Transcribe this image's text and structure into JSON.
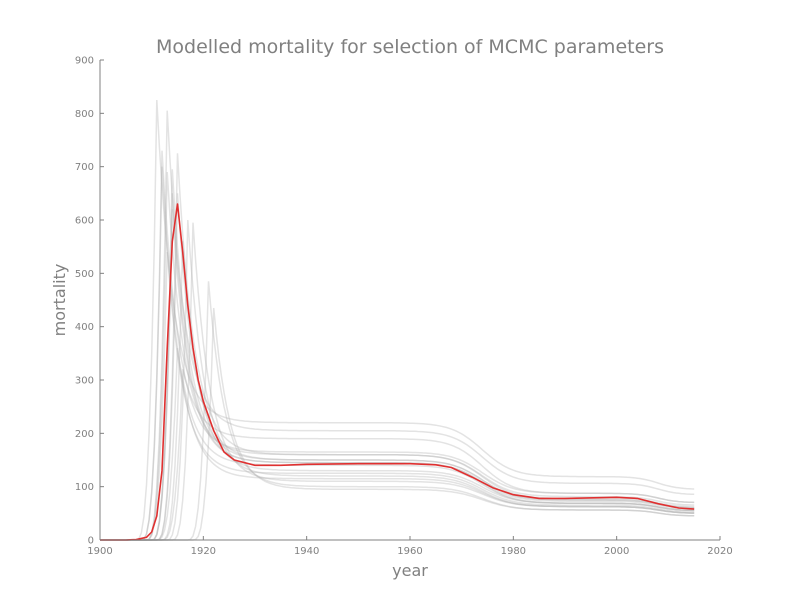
{
  "chart_data": {
    "type": "line",
    "title": "Modelled mortality for selection of MCMC parameters",
    "xlabel": "year",
    "ylabel": "mortality",
    "xlim": [
      1900,
      2020
    ],
    "ylim": [
      0,
      900
    ],
    "xticks": [
      "1900",
      "1920",
      "1940",
      "1960",
      "1980",
      "2000",
      "2020"
    ],
    "yticks": [
      "0",
      "100",
      "200",
      "300",
      "400",
      "500",
      "600",
      "700",
      "800",
      "900"
    ],
    "grid": false,
    "legend": "none",
    "colors": {
      "highlight": "#e03030",
      "samples": "#b0b0b0",
      "axis": "#808080",
      "text": "#808080"
    },
    "highlight_series": {
      "x": [
        1900,
        1905,
        1907,
        1909,
        1910,
        1911,
        1912,
        1913,
        1914,
        1915,
        1916,
        1917,
        1918,
        1919,
        1920,
        1922,
        1924,
        1926,
        1930,
        1935,
        1940,
        1950,
        1960,
        1965,
        1968,
        1972,
        1976,
        1980,
        1985,
        1990,
        2000,
        2004,
        2008,
        2012,
        2015
      ],
      "y": [
        0,
        0,
        1,
        5,
        15,
        45,
        130,
        360,
        560,
        630,
        540,
        440,
        360,
        300,
        260,
        205,
        165,
        150,
        140,
        140,
        142,
        143,
        143,
        141,
        136,
        118,
        98,
        85,
        78,
        78,
        80,
        78,
        68,
        60,
        58
      ]
    },
    "sample_series": [
      {
        "peak_x": 1911,
        "peak_y": 825,
        "plateau": 220,
        "tail": 95
      },
      {
        "peak_x": 1912,
        "peak_y": 730,
        "plateau": 165,
        "tail": 70
      },
      {
        "peak_x": 1913,
        "peak_y": 805,
        "plateau": 205,
        "tail": 85
      },
      {
        "peak_x": 1914,
        "peak_y": 695,
        "plateau": 150,
        "tail": 60
      },
      {
        "peak_x": 1915,
        "peak_y": 725,
        "plateau": 160,
        "tail": 65
      },
      {
        "peak_x": 1914,
        "peak_y": 650,
        "plateau": 145,
        "tail": 55
      },
      {
        "peak_x": 1916,
        "peak_y": 560,
        "plateau": 130,
        "tail": 55
      },
      {
        "peak_x": 1917,
        "peak_y": 600,
        "plateau": 120,
        "tail": 50
      },
      {
        "peak_x": 1918,
        "peak_y": 595,
        "plateau": 110,
        "tail": 50
      },
      {
        "peak_x": 1921,
        "peak_y": 485,
        "plateau": 100,
        "tail": 45
      },
      {
        "peak_x": 1922,
        "peak_y": 435,
        "plateau": 95,
        "tail": 45
      },
      {
        "peak_x": 1915,
        "peak_y": 360,
        "plateau": 115,
        "tail": 50
      },
      {
        "peak_x": 1916,
        "peak_y": 320,
        "plateau": 190,
        "tail": 70
      },
      {
        "peak_x": 1913,
        "peak_y": 690,
        "plateau": 160,
        "tail": 62
      },
      {
        "peak_x": 1914,
        "peak_y": 620,
        "plateau": 145,
        "tail": 58
      },
      {
        "peak_x": 1912,
        "peak_y": 700,
        "plateau": 140,
        "tail": 55
      },
      {
        "peak_x": 1913,
        "peak_y": 540,
        "plateau": 125,
        "tail": 52
      },
      {
        "peak_x": 1915,
        "peak_y": 650,
        "plateau": 150,
        "tail": 60
      }
    ]
  }
}
